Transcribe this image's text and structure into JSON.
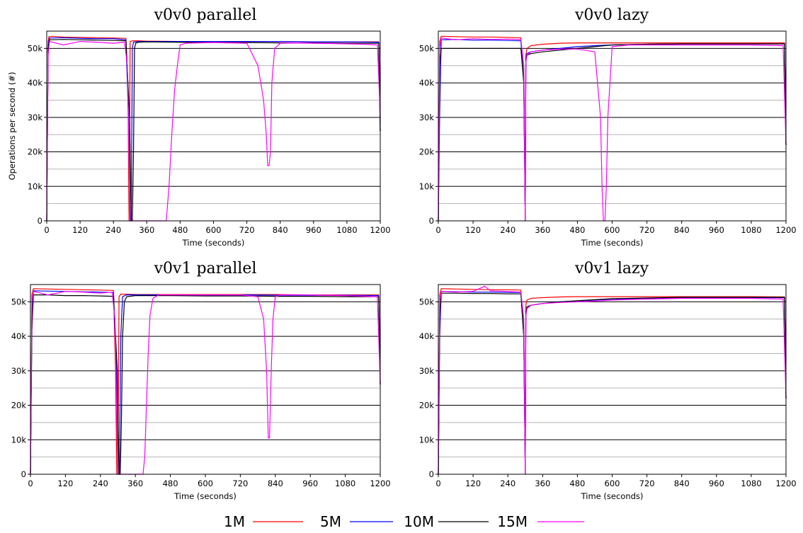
{
  "colors": {
    "1M": "#ff0000",
    "5M": "#0000ff",
    "10M": "#000000",
    "15M": "#ff00ff",
    "grid_major": "#000000",
    "grid_minor": "#b4b4b4"
  },
  "legend": [
    {
      "label": "1M",
      "color": "#ff0000"
    },
    {
      "label": "5M",
      "color": "#0000ff"
    },
    {
      "label": "10M",
      "color": "#000000"
    },
    {
      "label": "15M",
      "color": "#ff00ff"
    }
  ],
  "chart_data": [
    {
      "type": "line",
      "title": "v0v0 parallel",
      "xlabel": "Time (seconds)",
      "ylabel": "Operations per second (#)",
      "xlim": [
        0,
        1200
      ],
      "ylim": [
        0,
        55000
      ],
      "xticks": [
        "0",
        "120",
        "240",
        "360",
        "480",
        "600",
        "720",
        "840",
        "960",
        "1080",
        "1200"
      ],
      "yticks": [
        "0",
        "10k",
        "20k",
        "30k",
        "40k",
        "50k"
      ],
      "grid": true,
      "series": [
        {
          "name": "1M",
          "x": [
            0,
            5,
            8,
            20,
            60,
            120,
            180,
            240,
            285,
            292,
            296,
            300,
            310,
            330,
            360,
            480,
            600,
            720,
            840,
            960,
            1080,
            1195,
            1199,
            1200
          ],
          "y": [
            0,
            52000,
            53400,
            53500,
            53300,
            53200,
            53100,
            53000,
            52900,
            40000,
            0,
            52000,
            52200,
            52200,
            52100,
            52000,
            52000,
            52000,
            52000,
            51900,
            51900,
            51900,
            30000,
            26000
          ]
        },
        {
          "name": "5M",
          "x": [
            0,
            5,
            10,
            60,
            120,
            180,
            240,
            285,
            294,
            300,
            304,
            308,
            312,
            330,
            360,
            480,
            600,
            720,
            840,
            960,
            1080,
            1195,
            1200
          ],
          "y": [
            0,
            51000,
            53000,
            53100,
            52900,
            52800,
            52800,
            52500,
            30000,
            0,
            0,
            50000,
            51800,
            52000,
            52000,
            52000,
            52000,
            52000,
            52000,
            51900,
            51900,
            51800,
            26000
          ]
        },
        {
          "name": "10M",
          "x": [
            0,
            5,
            10,
            60,
            120,
            180,
            240,
            285,
            298,
            304,
            308,
            312,
            316,
            320,
            330,
            360,
            480,
            600,
            720,
            840,
            960,
            1080,
            1195,
            1200
          ],
          "y": [
            0,
            50000,
            52500,
            52600,
            52500,
            52400,
            52300,
            52200,
            30000,
            0,
            0,
            20000,
            50000,
            51500,
            51800,
            51900,
            51800,
            51700,
            51700,
            51600,
            51600,
            51500,
            51500,
            26000
          ]
        },
        {
          "name": "15M",
          "x": [
            0,
            5,
            10,
            60,
            120,
            180,
            240,
            280,
            290,
            300,
            320,
            340,
            360,
            380,
            400,
            420,
            430,
            440,
            450,
            460,
            470,
            480,
            500,
            540,
            600,
            660,
            720,
            760,
            780,
            790,
            795,
            800,
            805,
            810,
            820,
            840,
            900,
            960,
            1020,
            1080,
            1140,
            1190,
            1200
          ],
          "y": [
            0,
            48000,
            52000,
            51000,
            52000,
            51800,
            51500,
            51800,
            45000,
            0,
            0,
            0,
            0,
            0,
            0,
            0,
            0,
            10000,
            25000,
            38000,
            45000,
            51000,
            51500,
            51600,
            51700,
            51600,
            51500,
            45000,
            35000,
            25000,
            16000,
            16000,
            20000,
            40000,
            50000,
            51500,
            51600,
            51500,
            51400,
            51300,
            51200,
            51000,
            30000
          ]
        }
      ]
    },
    {
      "type": "line",
      "title": "v0v0 lazy",
      "xlabel": "Time (seconds)",
      "ylabel": "",
      "xlim": [
        0,
        1200
      ],
      "ylim": [
        0,
        55000
      ],
      "xticks": [
        "0",
        "120",
        "240",
        "360",
        "480",
        "600",
        "720",
        "840",
        "960",
        "1080",
        "1200"
      ],
      "yticks": [
        "0",
        "10k",
        "20k",
        "30k",
        "40k",
        "50k"
      ],
      "grid": true,
      "series": [
        {
          "name": "1M",
          "x": [
            0,
            5,
            10,
            60,
            120,
            180,
            240,
            285,
            295,
            300,
            302,
            306,
            320,
            360,
            420,
            480,
            600,
            720,
            840,
            960,
            1080,
            1195,
            1200
          ],
          "y": [
            0,
            52000,
            53500,
            53400,
            53300,
            53300,
            53200,
            53100,
            40000,
            0,
            48000,
            50000,
            50800,
            51200,
            51500,
            51600,
            51600,
            51600,
            51600,
            51600,
            51600,
            51600,
            22000
          ]
        },
        {
          "name": "5M",
          "x": [
            0,
            5,
            10,
            60,
            120,
            180,
            240,
            285,
            295,
            300,
            302,
            306,
            320,
            360,
            420,
            480,
            540,
            600,
            720,
            840,
            960,
            1080,
            1195,
            1200
          ],
          "y": [
            0,
            32000,
            52500,
            52600,
            52400,
            52400,
            52300,
            52200,
            40000,
            0,
            47000,
            48500,
            49000,
            49500,
            50000,
            50500,
            50800,
            51000,
            51200,
            51300,
            51300,
            51300,
            51300,
            22000
          ]
        },
        {
          "name": "10M",
          "x": [
            0,
            5,
            10,
            60,
            120,
            180,
            240,
            285,
            295,
            300,
            302,
            306,
            320,
            360,
            420,
            480,
            540,
            600,
            720,
            840,
            960,
            1080,
            1195,
            1200
          ],
          "y": [
            0,
            45000,
            50000,
            50000,
            50000,
            50000,
            50000,
            50000,
            40000,
            0,
            47000,
            48000,
            48500,
            49000,
            49500,
            50000,
            50500,
            51000,
            51200,
            51300,
            51300,
            51300,
            51300,
            22000
          ]
        },
        {
          "name": "15M",
          "x": [
            0,
            5,
            10,
            60,
            120,
            180,
            240,
            285,
            295,
            300,
            302,
            306,
            320,
            360,
            420,
            480,
            540,
            560,
            565,
            570,
            575,
            580,
            585,
            600,
            660,
            720,
            840,
            960,
            1080,
            1190,
            1200
          ],
          "y": [
            0,
            50000,
            53000,
            52500,
            52800,
            52600,
            52700,
            52600,
            45000,
            0,
            46000,
            48000,
            49000,
            49500,
            49800,
            49800,
            49000,
            30000,
            10000,
            0,
            0,
            10000,
            30000,
            50500,
            51000,
            51000,
            51000,
            51000,
            51000,
            50800,
            22000
          ]
        }
      ]
    },
    {
      "type": "line",
      "title": "v0v1 parallel",
      "xlabel": "Time (seconds)",
      "ylabel": "",
      "xlim": [
        0,
        1200
      ],
      "ylim": [
        0,
        55000
      ],
      "xticks": [
        "0",
        "120",
        "240",
        "360",
        "480",
        "600",
        "720",
        "840",
        "960",
        "1080",
        "1200"
      ],
      "yticks": [
        "0",
        "10k",
        "20k",
        "30k",
        "40k",
        "50k"
      ],
      "grid": true,
      "series": [
        {
          "name": "1M",
          "x": [
            0,
            5,
            10,
            60,
            120,
            180,
            240,
            285,
            292,
            296,
            300,
            304,
            310,
            330,
            360,
            480,
            600,
            720,
            840,
            960,
            1080,
            1195,
            1200
          ],
          "y": [
            0,
            52000,
            53800,
            53700,
            53600,
            53500,
            53400,
            53300,
            30000,
            0,
            0,
            51500,
            52200,
            52200,
            52100,
            52100,
            52100,
            52100,
            52100,
            52000,
            52000,
            52000,
            26000
          ]
        },
        {
          "name": "5M",
          "x": [
            0,
            5,
            10,
            60,
            120,
            180,
            240,
            285,
            295,
            300,
            305,
            310,
            316,
            330,
            360,
            480,
            600,
            720,
            840,
            960,
            1080,
            1195,
            1200
          ],
          "y": [
            0,
            46000,
            53200,
            53100,
            53000,
            52900,
            52800,
            52700,
            30000,
            0,
            0,
            40000,
            51500,
            52000,
            52000,
            52000,
            52000,
            52000,
            51900,
            51900,
            51900,
            51800,
            26000
          ]
        },
        {
          "name": "10M",
          "x": [
            0,
            5,
            10,
            60,
            120,
            180,
            240,
            285,
            298,
            304,
            308,
            312,
            316,
            322,
            330,
            360,
            480,
            600,
            720,
            840,
            960,
            1080,
            1195,
            1200
          ],
          "y": [
            0,
            42000,
            52000,
            52000,
            51800,
            51800,
            51700,
            51600,
            30000,
            0,
            0,
            15000,
            40000,
            50000,
            51500,
            51800,
            51800,
            51700,
            51700,
            51600,
            51600,
            51500,
            51500,
            26000
          ]
        },
        {
          "name": "15M",
          "x": [
            0,
            5,
            10,
            60,
            120,
            180,
            240,
            280,
            290,
            300,
            330,
            360,
            370,
            380,
            386,
            392,
            398,
            404,
            410,
            420,
            440,
            480,
            600,
            720,
            780,
            800,
            810,
            816,
            820,
            826,
            832,
            840,
            860,
            900,
            960,
            1080,
            1190,
            1200
          ],
          "y": [
            0,
            50000,
            53000,
            52000,
            53000,
            52800,
            52500,
            52800,
            45000,
            0,
            0,
            0,
            0,
            0,
            0,
            5000,
            20000,
            35000,
            46000,
            51000,
            52000,
            52000,
            52000,
            52000,
            51500,
            45000,
            30000,
            10500,
            10500,
            30000,
            45000,
            51500,
            52000,
            52000,
            52000,
            51800,
            51500,
            26000
          ]
        }
      ]
    },
    {
      "type": "line",
      "title": "v0v1 lazy",
      "xlabel": "Time (seconds)",
      "ylabel": "",
      "xlim": [
        0,
        1200
      ],
      "ylim": [
        0,
        55000
      ],
      "xticks": [
        "0",
        "120",
        "240",
        "360",
        "480",
        "600",
        "720",
        "840",
        "960",
        "1080",
        "1200"
      ],
      "yticks": [
        "0",
        "10k",
        "20k",
        "30k",
        "40k",
        "50k"
      ],
      "grid": true,
      "series": [
        {
          "name": "1M",
          "x": [
            0,
            5,
            10,
            60,
            120,
            180,
            240,
            285,
            295,
            300,
            302,
            306,
            320,
            360,
            420,
            480,
            600,
            720,
            840,
            960,
            1080,
            1195,
            1200
          ],
          "y": [
            0,
            52000,
            53800,
            53700,
            53600,
            53500,
            53500,
            53400,
            40000,
            0,
            49000,
            50500,
            51000,
            51200,
            51400,
            51500,
            51500,
            51500,
            51500,
            51500,
            51500,
            51400,
            22000
          ]
        },
        {
          "name": "5M",
          "x": [
            0,
            5,
            10,
            60,
            120,
            180,
            240,
            285,
            295,
            300,
            302,
            306,
            320,
            360,
            420,
            480,
            540,
            600,
            720,
            840,
            960,
            1080,
            1195,
            1200
          ],
          "y": [
            0,
            40000,
            53000,
            52900,
            52800,
            52800,
            52700,
            52700,
            40000,
            0,
            47000,
            48500,
            49000,
            49500,
            50000,
            50200,
            50500,
            50800,
            51000,
            51200,
            51200,
            51200,
            51200,
            22000
          ]
        },
        {
          "name": "10M",
          "x": [
            0,
            5,
            10,
            60,
            120,
            180,
            240,
            285,
            295,
            300,
            302,
            306,
            320,
            360,
            420,
            480,
            540,
            600,
            720,
            840,
            960,
            1080,
            1195,
            1200
          ],
          "y": [
            0,
            45000,
            52500,
            52500,
            52400,
            52400,
            52300,
            52300,
            40000,
            0,
            47000,
            48500,
            49000,
            49500,
            50000,
            50300,
            50600,
            50900,
            51100,
            51300,
            51300,
            51300,
            51300,
            22000
          ]
        },
        {
          "name": "15M",
          "x": [
            0,
            5,
            10,
            60,
            120,
            160,
            180,
            240,
            285,
            295,
            300,
            302,
            306,
            320,
            360,
            420,
            480,
            540,
            600,
            720,
            840,
            960,
            1080,
            1190,
            1200
          ],
          "y": [
            0,
            50000,
            53000,
            52800,
            53000,
            54500,
            53200,
            53000,
            52800,
            45000,
            0,
            46000,
            48000,
            49000,
            49500,
            49800,
            50000,
            50200,
            50500,
            50800,
            51000,
            51000,
            51000,
            50800,
            22000
          ]
        }
      ]
    }
  ]
}
